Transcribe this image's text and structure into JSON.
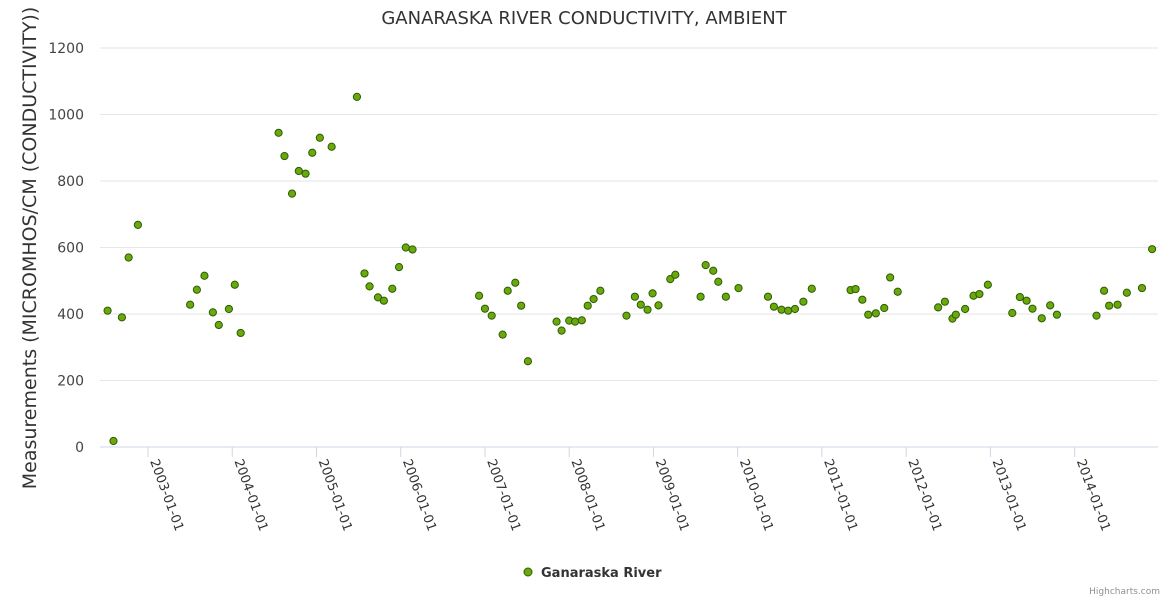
{
  "chart_data": {
    "type": "scatter",
    "title": "GANARASKA RIVER CONDUCTIVITY, AMBIENT",
    "xlabel": "",
    "ylabel": "Measurements (MICROMHOS/CM (CONDUCTIVITY))",
    "ylim": [
      0,
      1200
    ],
    "yticks": [
      "0",
      "200",
      "400",
      "600",
      "800",
      "1000",
      "1200"
    ],
    "xlim": [
      2002.43,
      2014.99
    ],
    "xticks": [
      {
        "label": "2003-01-01",
        "value": 2003.0
      },
      {
        "label": "2004-01-01",
        "value": 2004.0
      },
      {
        "label": "2005-01-01",
        "value": 2005.0
      },
      {
        "label": "2006-01-01",
        "value": 2006.0
      },
      {
        "label": "2007-01-01",
        "value": 2007.0
      },
      {
        "label": "2008-01-01",
        "value": 2008.0
      },
      {
        "label": "2009-01-01",
        "value": 2009.0
      },
      {
        "label": "2010-01-01",
        "value": 2010.0
      },
      {
        "label": "2011-01-01",
        "value": 2011.0
      },
      {
        "label": "2012-01-01",
        "value": 2012.0
      },
      {
        "label": "2013-01-01",
        "value": 2013.0
      },
      {
        "label": "2014-01-01",
        "value": 2014.0
      }
    ],
    "grid": true,
    "legend_position": "bottom-center",
    "color": "#6aa90e",
    "series": [
      {
        "name": "Ganaraska River",
        "points": [
          [
            2002.52,
            410
          ],
          [
            2002.59,
            18
          ],
          [
            2002.69,
            390
          ],
          [
            2002.77,
            570
          ],
          [
            2002.88,
            668
          ],
          [
            2003.5,
            428
          ],
          [
            2003.58,
            473
          ],
          [
            2003.67,
            515
          ],
          [
            2003.77,
            405
          ],
          [
            2003.84,
            367
          ],
          [
            2003.96,
            415
          ],
          [
            2004.03,
            488
          ],
          [
            2004.1,
            343
          ],
          [
            2004.55,
            945
          ],
          [
            2004.62,
            875
          ],
          [
            2004.71,
            762
          ],
          [
            2004.79,
            830
          ],
          [
            2004.87,
            822
          ],
          [
            2004.95,
            885
          ],
          [
            2005.04,
            930
          ],
          [
            2005.18,
            903
          ],
          [
            2005.48,
            1053
          ],
          [
            2005.57,
            522
          ],
          [
            2005.63,
            483
          ],
          [
            2005.73,
            450
          ],
          [
            2005.8,
            440
          ],
          [
            2005.9,
            476
          ],
          [
            2005.98,
            541
          ],
          [
            2006.06,
            600
          ],
          [
            2006.14,
            594
          ],
          [
            2006.93,
            455
          ],
          [
            2007.0,
            416
          ],
          [
            2007.08,
            395
          ],
          [
            2007.21,
            338
          ],
          [
            2007.27,
            470
          ],
          [
            2007.36,
            494
          ],
          [
            2007.43,
            425
          ],
          [
            2007.51,
            258
          ],
          [
            2007.85,
            377
          ],
          [
            2007.91,
            350
          ],
          [
            2008.0,
            380
          ],
          [
            2008.07,
            377
          ],
          [
            2008.15,
            381
          ],
          [
            2008.22,
            425
          ],
          [
            2008.29,
            445
          ],
          [
            2008.37,
            470
          ],
          [
            2008.68,
            395
          ],
          [
            2008.78,
            452
          ],
          [
            2008.85,
            428
          ],
          [
            2008.93,
            413
          ],
          [
            2008.99,
            462
          ],
          [
            2009.06,
            426
          ],
          [
            2009.2,
            505
          ],
          [
            2009.26,
            518
          ],
          [
            2009.56,
            452
          ],
          [
            2009.62,
            547
          ],
          [
            2009.71,
            530
          ],
          [
            2009.77,
            497
          ],
          [
            2009.86,
            452
          ],
          [
            2010.01,
            478
          ],
          [
            2010.36,
            452
          ],
          [
            2010.43,
            422
          ],
          [
            2010.52,
            413
          ],
          [
            2010.6,
            410
          ],
          [
            2010.68,
            415
          ],
          [
            2010.78,
            437
          ],
          [
            2010.88,
            476
          ],
          [
            2011.34,
            472
          ],
          [
            2011.4,
            475
          ],
          [
            2011.48,
            443
          ],
          [
            2011.55,
            398
          ],
          [
            2011.64,
            402
          ],
          [
            2011.74,
            418
          ],
          [
            2011.81,
            510
          ],
          [
            2011.9,
            467
          ],
          [
            2012.38,
            420
          ],
          [
            2012.46,
            437
          ],
          [
            2012.55,
            386
          ],
          [
            2012.59,
            398
          ],
          [
            2012.7,
            415
          ],
          [
            2012.8,
            455
          ],
          [
            2012.87,
            460
          ],
          [
            2012.97,
            488
          ],
          [
            2013.26,
            403
          ],
          [
            2013.35,
            451
          ],
          [
            2013.43,
            440
          ],
          [
            2013.5,
            416
          ],
          [
            2013.61,
            387
          ],
          [
            2013.71,
            426
          ],
          [
            2013.79,
            398
          ],
          [
            2014.26,
            395
          ],
          [
            2014.35,
            470
          ],
          [
            2014.41,
            425
          ],
          [
            2014.51,
            428
          ],
          [
            2014.62,
            464
          ],
          [
            2014.8,
            478
          ],
          [
            2014.92,
            595
          ]
        ]
      }
    ]
  },
  "legend": {
    "label": "Ganaraska River"
  },
  "credits": "Highcharts.com"
}
